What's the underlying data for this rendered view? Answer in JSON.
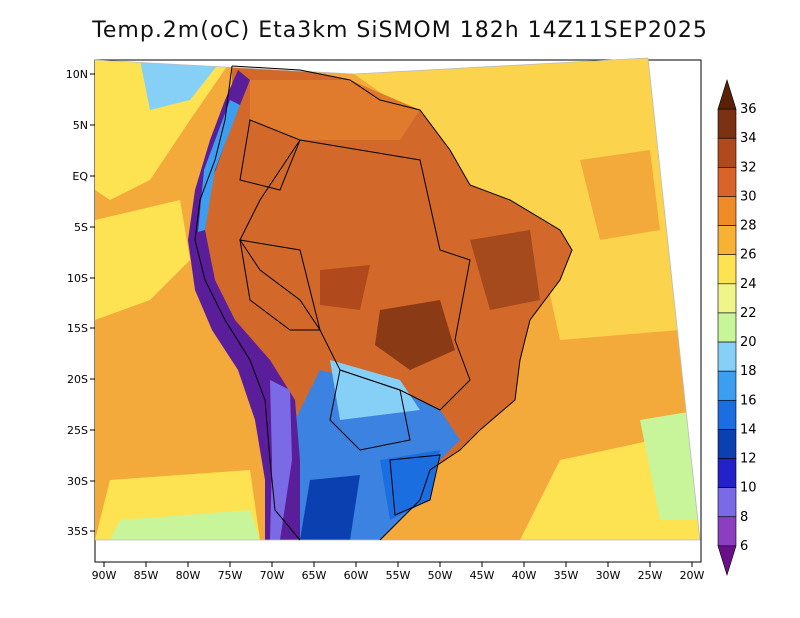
{
  "title": "Temp.2m(oC) Eta3km SiSMOM 182h 14Z11SEP2025",
  "axes": {
    "lon_labels": [
      "90W",
      "85W",
      "80W",
      "75W",
      "70W",
      "65W",
      "60W",
      "55W",
      "50W",
      "45W",
      "40W",
      "35W",
      "30W",
      "25W",
      "20W"
    ],
    "lat_labels": [
      "10N",
      "5N",
      "EQ",
      "5S",
      "10S",
      "15S",
      "20S",
      "25S",
      "30S",
      "35S"
    ]
  },
  "colorbar": {
    "labels": [
      "6",
      "8",
      "10",
      "12",
      "14",
      "16",
      "18",
      "20",
      "22",
      "24",
      "26",
      "28",
      "30",
      "32",
      "34",
      "36"
    ],
    "colors": [
      "#6a0f8a",
      "#8c3ec0",
      "#7a6ae6",
      "#2222c8",
      "#0a40b0",
      "#1a6ee0",
      "#3c9ef0",
      "#86d0f8",
      "#c8f59a",
      "#f0f58a",
      "#fde352",
      "#f7b236",
      "#f08c28",
      "#d8642a",
      "#b04a1c",
      "#7a3212",
      "#5a2008"
    ]
  },
  "legend": {
    "ocean_warm": "#f4aa3a",
    "ocean_mild": "#fbd34c",
    "land_hot": "#d2692a",
    "andes_cold": "#5a1e9a",
    "south_cool": "#3c82e0"
  }
}
